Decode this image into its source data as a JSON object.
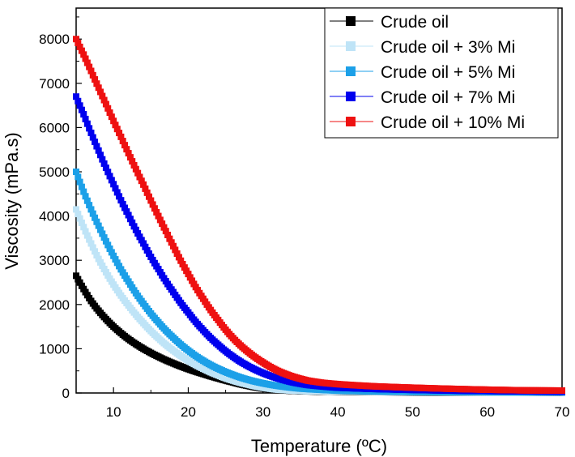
{
  "chart_data": {
    "type": "scatter",
    "title": "",
    "xlabel": "Temperature (ºC)",
    "ylabel": "Viscosity (mPa.s)",
    "xlim": [
      5,
      70
    ],
    "ylim": [
      0,
      8700
    ],
    "xticks": [
      10,
      20,
      30,
      40,
      50,
      60,
      70
    ],
    "yticks": [
      0,
      1000,
      2000,
      3000,
      4000,
      5000,
      6000,
      7000,
      8000
    ],
    "grid": false,
    "legend_position": "top-right",
    "series": [
      {
        "name": "Crude oil",
        "color": "#000000",
        "points": [
          [
            5,
            2650
          ],
          [
            6,
            2350
          ],
          [
            7,
            2080
          ],
          [
            8,
            1860
          ],
          [
            9,
            1670
          ],
          [
            10,
            1500
          ],
          [
            12,
            1220
          ],
          [
            14,
            1000
          ],
          [
            16,
            820
          ],
          [
            18,
            670
          ],
          [
            20,
            540
          ],
          [
            22,
            430
          ],
          [
            24,
            330
          ],
          [
            26,
            240
          ],
          [
            28,
            160
          ],
          [
            30,
            100
          ],
          [
            32,
            65
          ],
          [
            35,
            40
          ],
          [
            40,
            25
          ],
          [
            50,
            15
          ],
          [
            60,
            10
          ],
          [
            70,
            8
          ]
        ]
      },
      {
        "name": "Crude oil + 3% Mi",
        "color": "#bfe4f7",
        "points": [
          [
            5,
            4150
          ],
          [
            6,
            3750
          ],
          [
            7,
            3380
          ],
          [
            8,
            3030
          ],
          [
            9,
            2730
          ],
          [
            10,
            2450
          ],
          [
            12,
            1980
          ],
          [
            14,
            1580
          ],
          [
            16,
            1240
          ],
          [
            18,
            960
          ],
          [
            20,
            730
          ],
          [
            22,
            550
          ],
          [
            24,
            400
          ],
          [
            26,
            280
          ],
          [
            28,
            190
          ],
          [
            30,
            120
          ],
          [
            32,
            75
          ],
          [
            35,
            45
          ],
          [
            40,
            30
          ],
          [
            50,
            20
          ],
          [
            60,
            15
          ],
          [
            70,
            10
          ]
        ]
      },
      {
        "name": "Crude oil + 5% Mi",
        "color": "#1ca0e8",
        "points": [
          [
            5,
            5000
          ],
          [
            6,
            4550
          ],
          [
            7,
            4150
          ],
          [
            8,
            3780
          ],
          [
            9,
            3430
          ],
          [
            10,
            3100
          ],
          [
            12,
            2520
          ],
          [
            14,
            2020
          ],
          [
            16,
            1600
          ],
          [
            18,
            1250
          ],
          [
            20,
            960
          ],
          [
            22,
            730
          ],
          [
            24,
            550
          ],
          [
            26,
            410
          ],
          [
            28,
            300
          ],
          [
            30,
            220
          ],
          [
            32,
            160
          ],
          [
            35,
            100
          ],
          [
            40,
            55
          ],
          [
            50,
            25
          ],
          [
            60,
            18
          ],
          [
            70,
            12
          ]
        ]
      },
      {
        "name": "Crude oil + 7% Mi",
        "color": "#0000ee",
        "points": [
          [
            5,
            6700
          ],
          [
            6,
            6300
          ],
          [
            7,
            5880
          ],
          [
            8,
            5480
          ],
          [
            9,
            5090
          ],
          [
            10,
            4720
          ],
          [
            12,
            4020
          ],
          [
            14,
            3380
          ],
          [
            16,
            2800
          ],
          [
            18,
            2280
          ],
          [
            20,
            1820
          ],
          [
            22,
            1420
          ],
          [
            24,
            1090
          ],
          [
            26,
            820
          ],
          [
            28,
            610
          ],
          [
            30,
            450
          ],
          [
            32,
            330
          ],
          [
            34,
            240
          ],
          [
            36,
            180
          ],
          [
            40,
            120
          ],
          [
            45,
            90
          ],
          [
            50,
            70
          ],
          [
            55,
            55
          ],
          [
            60,
            45
          ],
          [
            65,
            38
          ],
          [
            70,
            30
          ]
        ]
      },
      {
        "name": "Crude oil + 10% Mi",
        "color": "#ee1111",
        "points": [
          [
            5,
            8000
          ],
          [
            6,
            7650
          ],
          [
            7,
            7280
          ],
          [
            8,
            6900
          ],
          [
            9,
            6530
          ],
          [
            10,
            6150
          ],
          [
            11,
            5790
          ],
          [
            12,
            5420
          ],
          [
            13,
            5060
          ],
          [
            14,
            4710
          ],
          [
            15,
            4350
          ],
          [
            16,
            4000
          ],
          [
            17,
            3660
          ],
          [
            18,
            3320
          ],
          [
            19,
            2990
          ],
          [
            20,
            2690
          ],
          [
            22,
            2130
          ],
          [
            24,
            1650
          ],
          [
            26,
            1240
          ],
          [
            28,
            930
          ],
          [
            30,
            690
          ],
          [
            32,
            500
          ],
          [
            34,
            370
          ],
          [
            36,
            280
          ],
          [
            38,
            230
          ],
          [
            40,
            200
          ],
          [
            45,
            150
          ],
          [
            50,
            120
          ],
          [
            55,
            95
          ],
          [
            60,
            75
          ],
          [
            65,
            60
          ],
          [
            70,
            55
          ]
        ]
      }
    ]
  }
}
